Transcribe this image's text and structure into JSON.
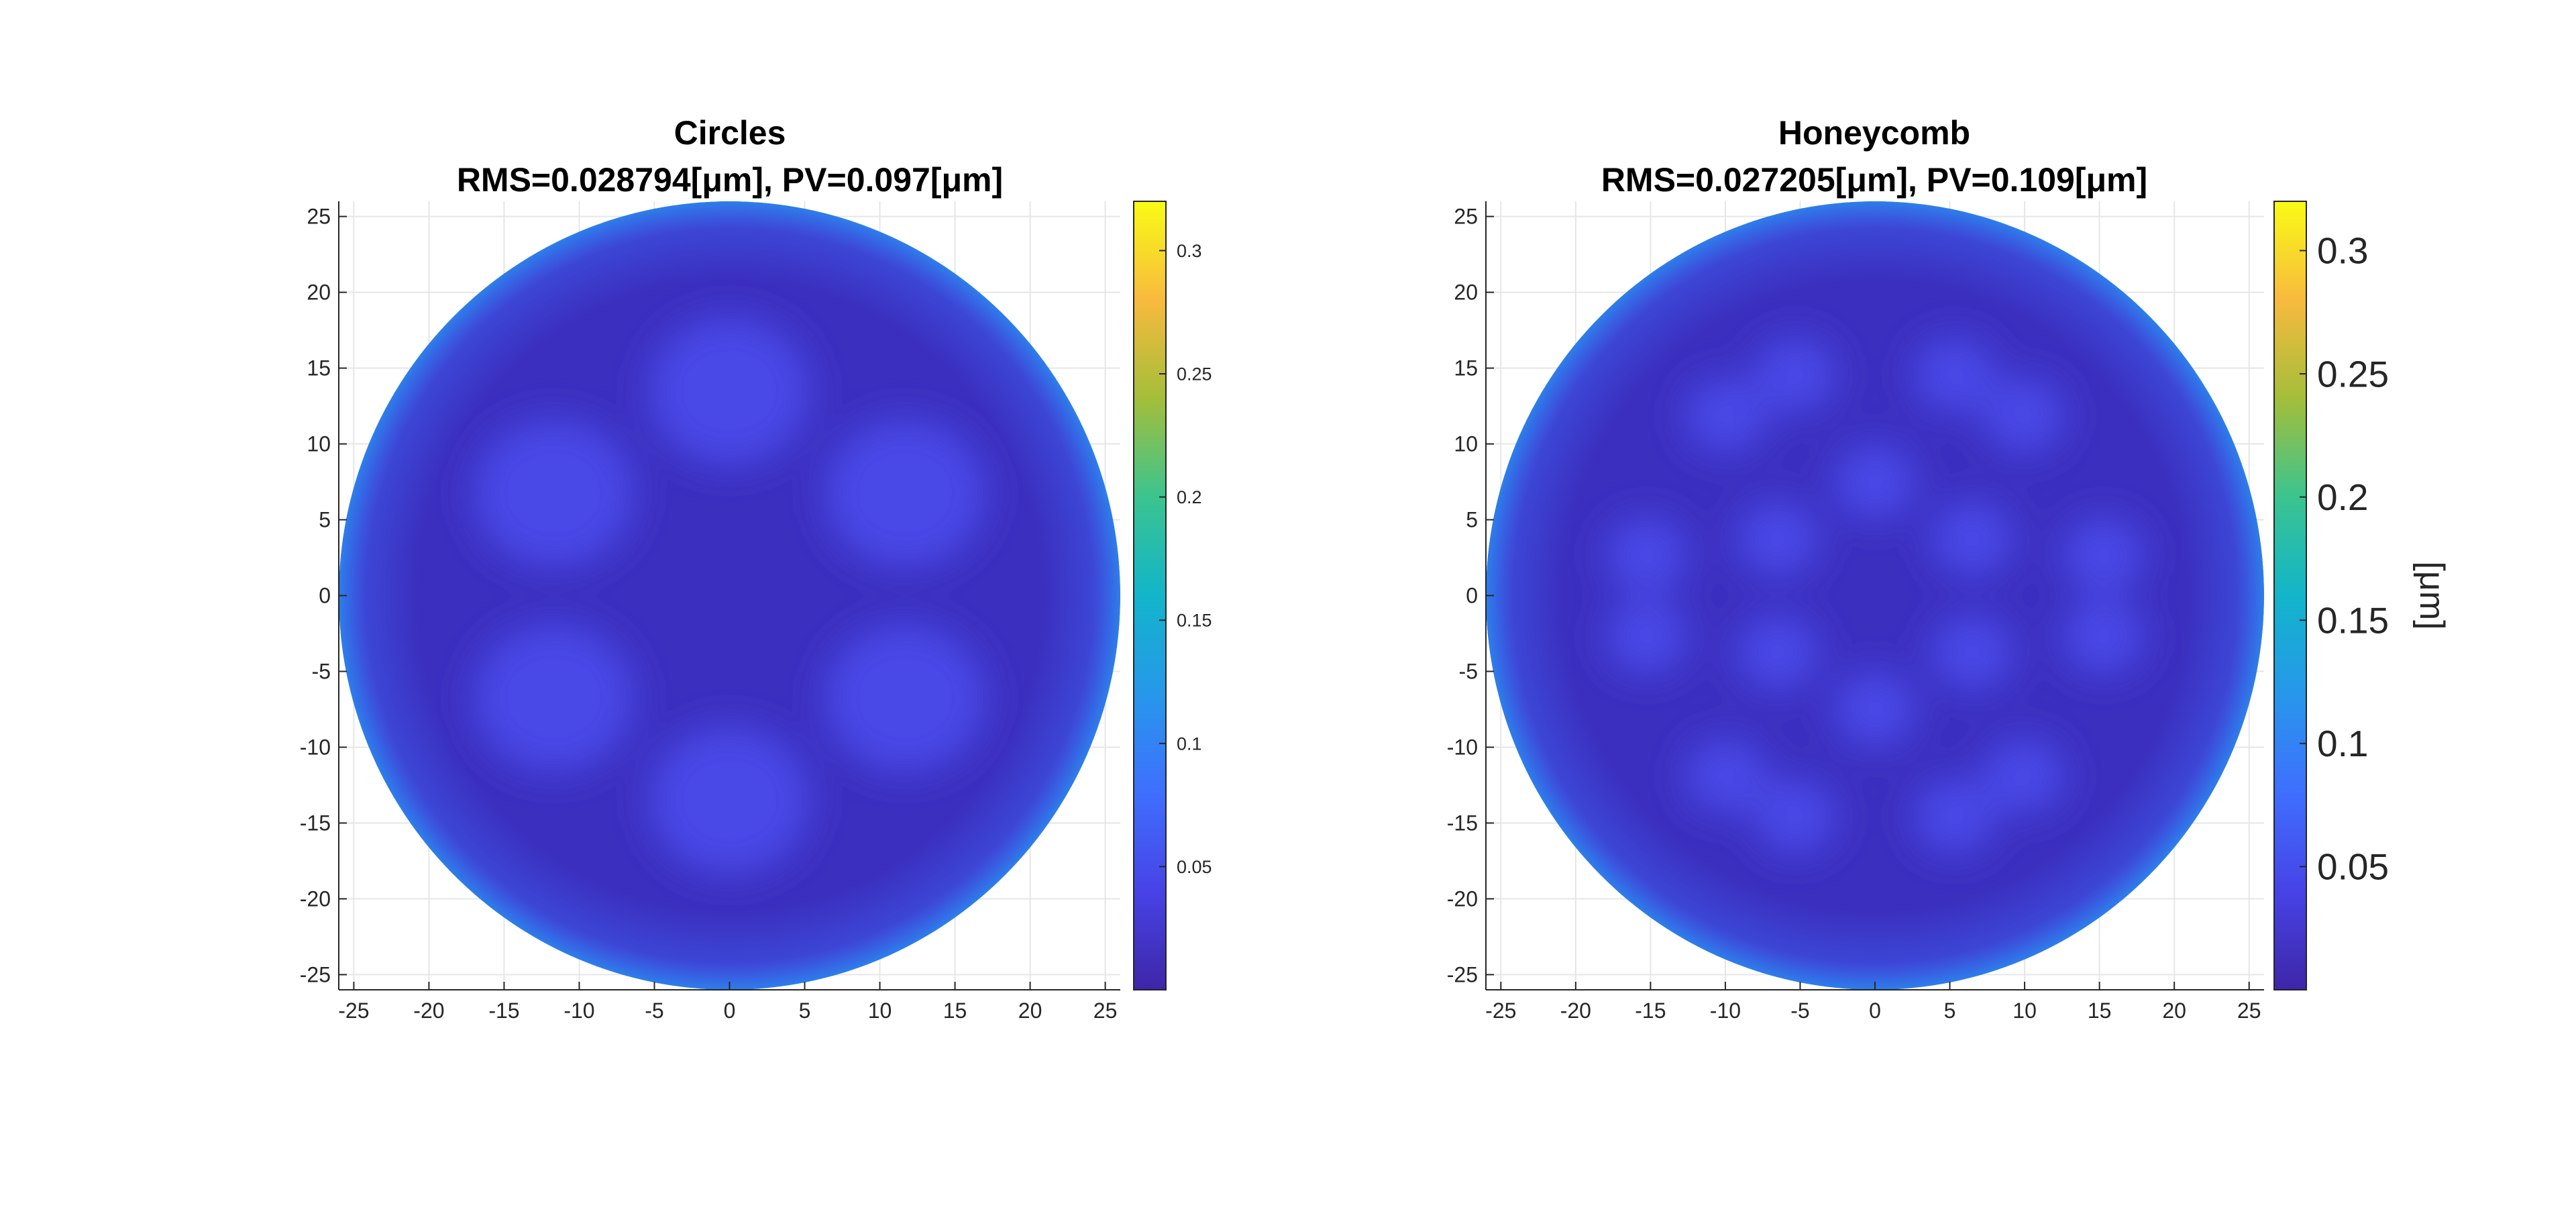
{
  "chart_data": [
    {
      "type": "heatmap",
      "title": "Circles",
      "subtitle": "RMS=0.028794[μm], PV=0.097[μm]",
      "xlabel": "",
      "ylabel": "",
      "xlim": [
        -26,
        26
      ],
      "ylim": [
        -26,
        26
      ],
      "xticks": [
        -25,
        -20,
        -15,
        -10,
        -5,
        0,
        5,
        10,
        15,
        20,
        25
      ],
      "yticks": [
        -25,
        -20,
        -15,
        -10,
        -5,
        0,
        5,
        10,
        15,
        20,
        25
      ],
      "grid": true,
      "aperture_radius": 26,
      "pattern": "circles",
      "rms": 0.028794,
      "pv": 0.097,
      "unit": "μm",
      "colorbar": {
        "min": 0,
        "max": 0.32,
        "ticks": [
          0.05,
          0.1,
          0.15,
          0.2,
          0.25,
          0.3
        ],
        "label": "",
        "colormap": "parula"
      }
    },
    {
      "type": "heatmap",
      "title": "Honeycomb",
      "subtitle": "RMS=0.027205[μm], PV=0.109[μm]",
      "xlabel": "",
      "ylabel": "",
      "xlim": [
        -26,
        26
      ],
      "ylim": [
        -26,
        26
      ],
      "xticks": [
        -25,
        -20,
        -15,
        -10,
        -5,
        0,
        5,
        10,
        15,
        20,
        25
      ],
      "yticks": [
        -25,
        -20,
        -15,
        -10,
        -5,
        0,
        5,
        10,
        15,
        20,
        25
      ],
      "grid": true,
      "aperture_radius": 26,
      "pattern": "honeycomb",
      "rms": 0.027205,
      "pv": 0.109,
      "unit": "μm",
      "colorbar": {
        "min": 0,
        "max": 0.32,
        "ticks": [
          0.05,
          0.1,
          0.15,
          0.2,
          0.25,
          0.3
        ],
        "label": "[μm]",
        "colormap": "parula"
      }
    }
  ]
}
